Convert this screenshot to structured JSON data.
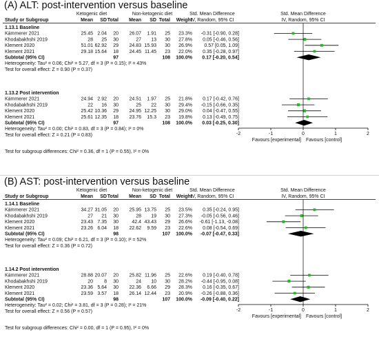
{
  "chart_data": [
    {
      "type": "forest",
      "title": "(A) ALT: post-intervention versus baseline",
      "headers": {
        "group_exp": "Ketogenic diet",
        "group_ctl": "Non-ketogenic diet",
        "study": "Study or Subgroup",
        "mean": "Mean",
        "sd": "SD",
        "total": "Total",
        "weight": "Weight",
        "smd": "Std. Mean Difference",
        "smd_method": "IV, Random, 95% CI"
      },
      "subgroups": [
        {
          "label": "1.13.1 Baseline",
          "studies": [
            {
              "name": "Kämmerer 2021",
              "m1": "25.45",
              "sd1": "2.04",
              "n1": "20",
              "m2": "26.07",
              "sd2": "1.91",
              "n2": "25",
              "weight": "23.3%",
              "ci": "-0.31 [-0.90, 0.28]",
              "est": -0.31,
              "lo": -0.9,
              "hi": 0.28
            },
            {
              "name": "Khodabakhshi 2019",
              "m1": "28",
              "sd1": "25",
              "n1": "30",
              "m2": "27",
              "sd2": "13",
              "n2": "30",
              "weight": "27.8%",
              "ci": "0.05 [-0.46, 0.56]",
              "est": 0.05,
              "lo": -0.46,
              "hi": 0.56
            },
            {
              "name": "Klement 2020",
              "m1": "51.01",
              "sd1": "62.92",
              "n1": "29",
              "m2": "24.83",
              "sd2": "15.93",
              "n2": "30",
              "weight": "26.9%",
              "ci": "0.57 [0.05, 1.09]",
              "est": 0.57,
              "lo": 0.05,
              "hi": 1.09
            },
            {
              "name": "Klement 2021",
              "m1": "29.18",
              "sd1": "15.64",
              "n1": "18",
              "m2": "24.45",
              "sd2": "11.45",
              "n2": "23",
              "weight": "22.0%",
              "ci": "0.35 [-0.28, 0.97]",
              "est": 0.35,
              "lo": -0.28,
              "hi": 0.97
            }
          ],
          "subtotal": {
            "label": "Subtotal (95% CI)",
            "n1": "97",
            "n2": "108",
            "weight": "100.0%",
            "ci": "0.17 [-0.20, 0.54]",
            "est": 0.17,
            "lo": -0.2,
            "hi": 0.54
          },
          "heterogeneity": "Heterogeneity: Tau² = 0.06; Chi² = 5.27, df = 3 (P = 0.15); I² = 43%",
          "overall": "Test for overall effect: Z = 0.90 (P = 0.37)"
        },
        {
          "label": "1.13.2 Post intervention",
          "studies": [
            {
              "name": "Kämmerer 2021",
              "m1": "24.94",
              "sd1": "2.92",
              "n1": "20",
              "m2": "24.51",
              "sd2": "1.97",
              "n2": "25",
              "weight": "21.8%",
              "ci": "0.17 [-0.42, 0.76]",
              "est": 0.17,
              "lo": -0.42,
              "hi": 0.76
            },
            {
              "name": "Khodabakhshi 2019",
              "m1": "22",
              "sd1": "16",
              "n1": "30",
              "m2": "25",
              "sd2": "22",
              "n2": "30",
              "weight": "29.4%",
              "ci": "-0.15 [-0.66, 0.35]",
              "est": -0.15,
              "lo": -0.66,
              "hi": 0.35
            },
            {
              "name": "Klement 2020",
              "m1": "25.42",
              "sd1": "10.36",
              "n1": "29",
              "m2": "24.95",
              "sd2": "12.25",
              "n2": "30",
              "weight": "29.0%",
              "ci": "0.04 [-0.47, 0.55]",
              "est": 0.04,
              "lo": -0.47,
              "hi": 0.55
            },
            {
              "name": "Klement 2021",
              "m1": "25.61",
              "sd1": "12.35",
              "n1": "18",
              "m2": "23.76",
              "sd2": "15.3",
              "n2": "23",
              "weight": "19.8%",
              "ci": "0.13 [-0.49, 0.75]",
              "est": 0.13,
              "lo": -0.49,
              "hi": 0.75
            }
          ],
          "subtotal": {
            "label": "Subtotal (95% CI)",
            "n1": "97",
            "n2": "108",
            "weight": "100.0%",
            "ci": "0.03 [-0.25, 0.30]",
            "est": 0.03,
            "lo": -0.25,
            "hi": 0.3
          },
          "heterogeneity": "Heterogeneity: Tau² = 0.00; Chi² = 0.83, df = 3 (P = 0.84); I² = 0%",
          "overall": "Test for overall effect: Z = 0.21 (P = 0.83)"
        }
      ],
      "subgroup_test": "Test for subgroup differences: Chi² = 0.36, df = 1 (P = 0.55), I² = 0%",
      "axis": {
        "min": -2,
        "max": 2,
        "ticks": [
          "-2",
          "-1",
          "0",
          "1",
          "2"
        ]
      },
      "favours_left": "Favours [experimental]",
      "favours_right": "Favours [control]"
    },
    {
      "type": "forest",
      "title": "(B) AST: post-intervention versus baseline",
      "headers": {
        "group_exp": "Ketogenic diet",
        "group_ctl": "Non-ketogenic diet",
        "study": "Study or Subgroup",
        "mean": "Mean",
        "sd": "SD",
        "total": "Total",
        "weight": "Weight",
        "smd": "Std. Mean Difference",
        "smd_method": "IV, Random, 95% CI"
      },
      "subgroups": [
        {
          "label": "1.14.1 Baseline",
          "studies": [
            {
              "name": "Kämmerer 2021",
              "m1": "34.27",
              "sd1": "31.05",
              "n1": "20",
              "m2": "25.95",
              "sd2": "13.75",
              "n2": "25",
              "weight": "23.5%",
              "ci": "0.35 [-0.24, 0.95]",
              "est": 0.35,
              "lo": -0.24,
              "hi": 0.95
            },
            {
              "name": "Khodabakhshi 2019",
              "m1": "27",
              "sd1": "21",
              "n1": "30",
              "m2": "28",
              "sd2": "19",
              "n2": "30",
              "weight": "27.3%",
              "ci": "-0.05 [-0.56, 0.46]",
              "est": -0.05,
              "lo": -0.56,
              "hi": 0.46
            },
            {
              "name": "Klement 2020",
              "m1": "23.43",
              "sd1": "7.35",
              "n1": "30",
              "m2": "42.4",
              "sd2": "43.43",
              "n2": "29",
              "weight": "26.6%",
              "ci": "-0.61 [-1.13, -0.08]",
              "est": -0.61,
              "lo": -1.13,
              "hi": -0.08
            },
            {
              "name": "Klement 2021",
              "m1": "23.26",
              "sd1": "6.04",
              "n1": "18",
              "m2": "22.62",
              "sd2": "9.59",
              "n2": "23",
              "weight": "22.6%",
              "ci": "0.08 [-0.54, 0.69]",
              "est": 0.08,
              "lo": -0.54,
              "hi": 0.69
            }
          ],
          "subtotal": {
            "label": "Subtotal (95% CI)",
            "n1": "98",
            "n2": "107",
            "weight": "100.0%",
            "ci": "-0.07 [-0.47, 0.33]",
            "est": -0.07,
            "lo": -0.47,
            "hi": 0.33
          },
          "heterogeneity": "Heterogeneity: Tau² = 0.09; Chi² = 6.21, df = 3 (P = 0.10); I² = 52%",
          "overall": "Test for overall effect: Z = 0.36 (P = 0.72)"
        },
        {
          "label": "1.14.2 Post intervention",
          "studies": [
            {
              "name": "Kämmerer 2021",
              "m1": "28.88",
              "sd1": "20.07",
              "n1": "20",
              "m2": "25.82",
              "sd2": "11.96",
              "n2": "25",
              "weight": "22.6%",
              "ci": "0.19 [-0.40, 0.78]",
              "est": 0.19,
              "lo": -0.4,
              "hi": 0.78
            },
            {
              "name": "Khodabakhshi 2019",
              "m1": "20",
              "sd1": "8",
              "n1": "30",
              "m2": "24",
              "sd2": "10",
              "n2": "30",
              "weight": "28.2%",
              "ci": "-0.44 [-0.95, 0.08]",
              "est": -0.44,
              "lo": -0.95,
              "hi": 0.08
            },
            {
              "name": "Klement 2020",
              "m1": "23.36",
              "sd1": "5.64",
              "n1": "30",
              "m2": "22.36",
              "sd2": "6.66",
              "n2": "29",
              "weight": "28.3%",
              "ci": "0.16 [-0.35, 0.67]",
              "est": 0.16,
              "lo": -0.35,
              "hi": 0.67
            },
            {
              "name": "Klement 2021",
              "m1": "23.59",
              "sd1": "3.57",
              "n1": "18",
              "m2": "26.14",
              "sd2": "12.44",
              "n2": "23",
              "weight": "20.9%",
              "ci": "-0.26 [-0.88, 0.36]",
              "est": -0.26,
              "lo": -0.88,
              "hi": 0.36
            }
          ],
          "subtotal": {
            "label": "Subtotal (95% CI)",
            "n1": "98",
            "n2": "107",
            "weight": "100.0%",
            "ci": "-0.09 [-0.40, 0.22]",
            "est": -0.09,
            "lo": -0.4,
            "hi": 0.22
          },
          "heterogeneity": "Heterogeneity: Tau² = 0.02; Chi² = 3.81, df = 3 (P = 0.28); I² = 21%",
          "overall": "Test for overall effect: Z = 0.56 (P = 0.57)"
        }
      ],
      "subgroup_test": "Test for subgroup differences: Chi² = 0.00, df = 1 (P = 0.95), I² = 0%",
      "axis": {
        "min": -2,
        "max": 2,
        "ticks": [
          "-2",
          "-1",
          "0",
          "1",
          "2"
        ]
      },
      "favours_left": "Favours [experimental]",
      "favours_right": "Favours [control]"
    }
  ],
  "colors": {
    "marker": "#22bb22",
    "diamond": "#000000",
    "line": "#000000"
  }
}
